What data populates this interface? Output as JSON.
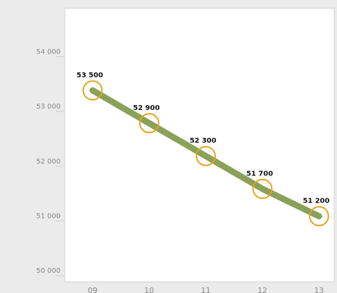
{
  "chart_data": {
    "type": "line",
    "categories": [
      "09",
      "10",
      "11",
      "12",
      "13"
    ],
    "series": [
      {
        "color": "#8aa15a",
        "marker_color": "#e8a31c",
        "values": [
          53500,
          52900,
          52300,
          51700,
          51200
        ],
        "value_labels": [
          "53 500",
          "52 900",
          "52 300",
          "51 700",
          "51 200"
        ]
      }
    ],
    "ylim": [
      50000,
      55000
    ],
    "yticks": [
      {
        "value": 50000,
        "label": "50 000"
      },
      {
        "value": 51000,
        "label": "51 000"
      },
      {
        "value": 52000,
        "label": "52 000"
      },
      {
        "value": 53000,
        "label": "53 000"
      },
      {
        "value": 54000,
        "label": "54 000"
      }
    ]
  }
}
